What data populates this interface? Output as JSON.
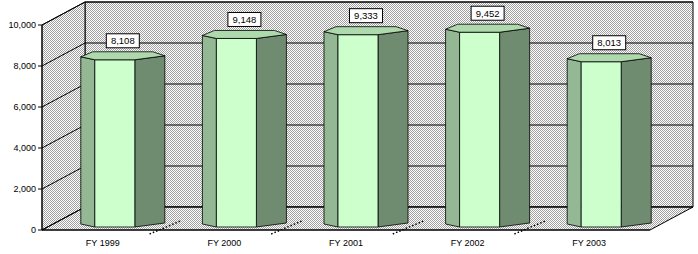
{
  "chart_data": {
    "type": "bar",
    "categories": [
      "FY 1999",
      "FY 2000",
      "FY 2001",
      "FY 2002",
      "FY 2003"
    ],
    "values": [
      8108,
      9148,
      9333,
      9452,
      8013
    ],
    "value_labels": [
      "8,108",
      "9,148",
      "9,333",
      "9,452",
      "8,013"
    ],
    "data_labels": true,
    "color": "#ccffcc",
    "ylim": [
      0,
      10000
    ],
    "yticks": [
      0,
      {
        "value": 2000,
        "label": "2,000"
      },
      {
        "value": 4000,
        "label": "4,000"
      },
      {
        "value": 6000,
        "label": "6,000"
      },
      {
        "value": 8000,
        "label": "8,000"
      },
      {
        "value": 10000,
        "label": "10,000"
      }
    ],
    "grid": true
  }
}
